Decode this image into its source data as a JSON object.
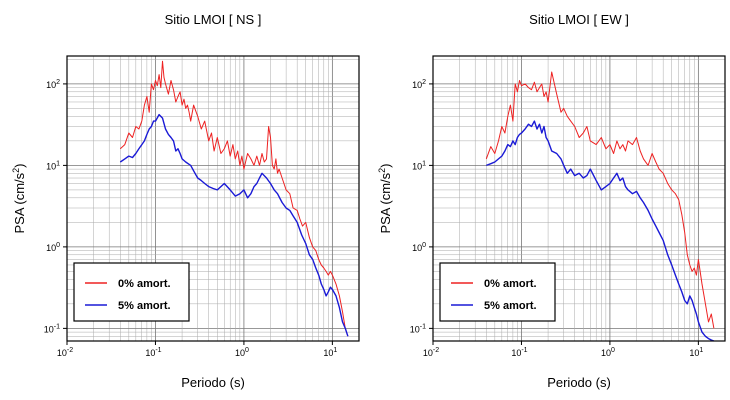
{
  "chart_data": [
    {
      "type": "line",
      "title": "Sitio LMOI [ NS ]",
      "xlabel": "Periodo (s)",
      "ylabel": "PSA (cm/s²)",
      "xscale": "log",
      "yscale": "log",
      "xlim": [
        0.01,
        20
      ],
      "ylim": [
        0.07,
        220
      ],
      "x_ticks": [
        {
          "base": "10",
          "exp": "-2"
        },
        {
          "base": "10",
          "exp": "-1"
        },
        {
          "base": "10",
          "exp": "0"
        },
        {
          "base": "10",
          "exp": "1"
        }
      ],
      "y_ticks": [
        {
          "base": "10",
          "exp": "-1"
        },
        {
          "base": "10",
          "exp": "0"
        },
        {
          "base": "10",
          "exp": "1"
        },
        {
          "base": "10",
          "exp": "2"
        }
      ],
      "grid": true,
      "legend_position": "bottom-left",
      "series": [
        {
          "name": "0% amort.",
          "color": "#ee2222",
          "x": [
            0.04,
            0.045,
            0.05,
            0.055,
            0.06,
            0.065,
            0.07,
            0.075,
            0.08,
            0.085,
            0.09,
            0.095,
            0.1,
            0.105,
            0.11,
            0.115,
            0.12,
            0.125,
            0.13,
            0.14,
            0.15,
            0.16,
            0.17,
            0.18,
            0.19,
            0.2,
            0.21,
            0.22,
            0.23,
            0.24,
            0.25,
            0.27,
            0.3,
            0.33,
            0.36,
            0.4,
            0.43,
            0.46,
            0.5,
            0.55,
            0.6,
            0.65,
            0.7,
            0.75,
            0.8,
            0.85,
            0.9,
            0.95,
            1.0,
            1.1,
            1.2,
            1.3,
            1.4,
            1.5,
            1.6,
            1.7,
            1.8,
            1.9,
            2.0,
            2.1,
            2.2,
            2.3,
            2.4,
            2.5,
            2.7,
            3.0,
            3.3,
            3.6,
            4.0,
            4.3,
            4.6,
            5.0,
            5.5,
            6.0,
            6.5,
            7.0,
            7.5,
            8.0,
            8.5,
            9.0,
            9.5,
            10,
            11,
            12,
            13,
            14,
            15
          ],
          "y": [
            16,
            18,
            25,
            22,
            30,
            28,
            35,
            55,
            70,
            45,
            100,
            85,
            110,
            95,
            130,
            90,
            190,
            120,
            100,
            75,
            110,
            85,
            60,
            70,
            80,
            55,
            65,
            50,
            55,
            45,
            35,
            55,
            40,
            28,
            35,
            20,
            25,
            15,
            22,
            14,
            16,
            20,
            13,
            18,
            12,
            15,
            10,
            13,
            9,
            14,
            12,
            10,
            13,
            10,
            14,
            11,
            12,
            30,
            22,
            10,
            9,
            12,
            8,
            9,
            7,
            5,
            4.5,
            3,
            2.8,
            2.2,
            1.8,
            2.0,
            1.3,
            1.0,
            0.9,
            0.7,
            0.6,
            0.55,
            0.5,
            0.45,
            0.5,
            0.45,
            0.35,
            0.25,
            0.16,
            0.1,
            0.08
          ]
        },
        {
          "name": "5% amort.",
          "color": "#1a1ad6",
          "x": [
            0.04,
            0.045,
            0.05,
            0.055,
            0.06,
            0.065,
            0.07,
            0.075,
            0.08,
            0.085,
            0.09,
            0.095,
            0.1,
            0.11,
            0.12,
            0.13,
            0.14,
            0.15,
            0.16,
            0.17,
            0.18,
            0.19,
            0.2,
            0.22,
            0.25,
            0.28,
            0.3,
            0.33,
            0.36,
            0.4,
            0.45,
            0.5,
            0.55,
            0.6,
            0.7,
            0.8,
            0.9,
            1.0,
            1.1,
            1.2,
            1.3,
            1.4,
            1.5,
            1.6,
            1.8,
            2.0,
            2.2,
            2.4,
            2.7,
            3.0,
            3.3,
            3.6,
            4.0,
            4.5,
            5.0,
            5.5,
            6.0,
            6.5,
            7.0,
            7.5,
            8.0,
            8.5,
            9.0,
            9.5,
            10,
            11,
            12,
            13,
            14,
            15
          ],
          "y": [
            11,
            12,
            13,
            12.5,
            14,
            16,
            18,
            20,
            24,
            28,
            30,
            35,
            35,
            42,
            38,
            28,
            24,
            22,
            20,
            15,
            16,
            14,
            12,
            11,
            10,
            8,
            7,
            6.5,
            6,
            5.5,
            5.2,
            5,
            5.5,
            6,
            5,
            4.2,
            4.5,
            5,
            4,
            4.5,
            5.5,
            6,
            7,
            8,
            7,
            6,
            5,
            4.5,
            3.5,
            3.0,
            2.8,
            2.4,
            2.0,
            1.4,
            1.1,
            0.8,
            0.7,
            0.55,
            0.45,
            0.35,
            0.3,
            0.25,
            0.28,
            0.32,
            0.3,
            0.25,
            0.18,
            0.12,
            0.1,
            0.08
          ]
        }
      ]
    },
    {
      "type": "line",
      "title": "Sitio LMOI [ EW ]",
      "xlabel": "Periodo (s)",
      "ylabel": "PSA (cm/s²)",
      "xscale": "log",
      "yscale": "log",
      "xlim": [
        0.01,
        20
      ],
      "ylim": [
        0.07,
        220
      ],
      "x_ticks": [
        {
          "base": "10",
          "exp": "-2"
        },
        {
          "base": "10",
          "exp": "-1"
        },
        {
          "base": "10",
          "exp": "0"
        },
        {
          "base": "10",
          "exp": "1"
        }
      ],
      "y_ticks": [
        {
          "base": "10",
          "exp": "-1"
        },
        {
          "base": "10",
          "exp": "0"
        },
        {
          "base": "10",
          "exp": "1"
        },
        {
          "base": "10",
          "exp": "2"
        }
      ],
      "grid": true,
      "legend_position": "bottom-left",
      "series": [
        {
          "name": "0% amort.",
          "color": "#ee2222",
          "x": [
            0.04,
            0.045,
            0.05,
            0.055,
            0.06,
            0.065,
            0.07,
            0.075,
            0.08,
            0.085,
            0.09,
            0.095,
            0.1,
            0.11,
            0.12,
            0.13,
            0.14,
            0.15,
            0.16,
            0.17,
            0.18,
            0.19,
            0.2,
            0.22,
            0.25,
            0.28,
            0.3,
            0.33,
            0.36,
            0.4,
            0.45,
            0.5,
            0.55,
            0.6,
            0.7,
            0.8,
            0.9,
            1.0,
            1.1,
            1.2,
            1.3,
            1.4,
            1.5,
            1.6,
            1.8,
            2.0,
            2.2,
            2.4,
            2.7,
            3.0,
            3.3,
            3.6,
            4.0,
            4.5,
            5.0,
            5.5,
            6.0,
            6.5,
            7.0,
            7.5,
            8.0,
            8.5,
            9.0,
            9.5,
            10,
            11,
            12,
            13,
            14,
            15
          ],
          "y": [
            12,
            17,
            14,
            20,
            30,
            25,
            40,
            55,
            35,
            100,
            80,
            110,
            95,
            100,
            90,
            85,
            105,
            80,
            90,
            100,
            70,
            80,
            60,
            140,
            75,
            45,
            50,
            40,
            35,
            30,
            22,
            25,
            30,
            20,
            18,
            22,
            16,
            18,
            14,
            20,
            16,
            18,
            15,
            20,
            18,
            22,
            15,
            12,
            10,
            14,
            11,
            9,
            8,
            6,
            5,
            4.5,
            3.8,
            2.5,
            1.5,
            0.8,
            0.6,
            0.5,
            0.55,
            0.45,
            0.7,
            0.35,
            0.2,
            0.12,
            0.15,
            0.1
          ]
        },
        {
          "name": "5% amort.",
          "color": "#1a1ad6",
          "x": [
            0.04,
            0.045,
            0.05,
            0.055,
            0.06,
            0.065,
            0.07,
            0.075,
            0.08,
            0.085,
            0.09,
            0.095,
            0.1,
            0.11,
            0.12,
            0.13,
            0.14,
            0.15,
            0.16,
            0.17,
            0.18,
            0.19,
            0.2,
            0.22,
            0.25,
            0.28,
            0.3,
            0.33,
            0.36,
            0.4,
            0.45,
            0.5,
            0.55,
            0.6,
            0.7,
            0.8,
            0.9,
            1.0,
            1.1,
            1.2,
            1.3,
            1.4,
            1.5,
            1.6,
            1.8,
            2.0,
            2.2,
            2.4,
            2.7,
            3.0,
            3.3,
            3.6,
            4.0,
            4.5,
            5.0,
            5.5,
            6.0,
            6.5,
            7.0,
            7.5,
            8.0,
            8.5,
            9.0,
            9.5,
            10,
            11,
            12,
            13,
            14,
            15
          ],
          "y": [
            10,
            10.5,
            11,
            12,
            13,
            15,
            18,
            17,
            20,
            18,
            22,
            24,
            25,
            28,
            32,
            30,
            35,
            28,
            32,
            25,
            30,
            22,
            20,
            15,
            14,
            12,
            10,
            8,
            9,
            7.5,
            8,
            7,
            7.5,
            9,
            6.5,
            5,
            5.5,
            6,
            7,
            8,
            6.5,
            7,
            5.5,
            5,
            4.5,
            4.8,
            4,
            3.5,
            2.8,
            2.2,
            1.8,
            1.5,
            1.2,
            0.8,
            0.6,
            0.45,
            0.35,
            0.28,
            0.22,
            0.2,
            0.25,
            0.22,
            0.18,
            0.15,
            0.12,
            0.09,
            0.08,
            0.075,
            0.072,
            0.07
          ]
        }
      ]
    }
  ]
}
